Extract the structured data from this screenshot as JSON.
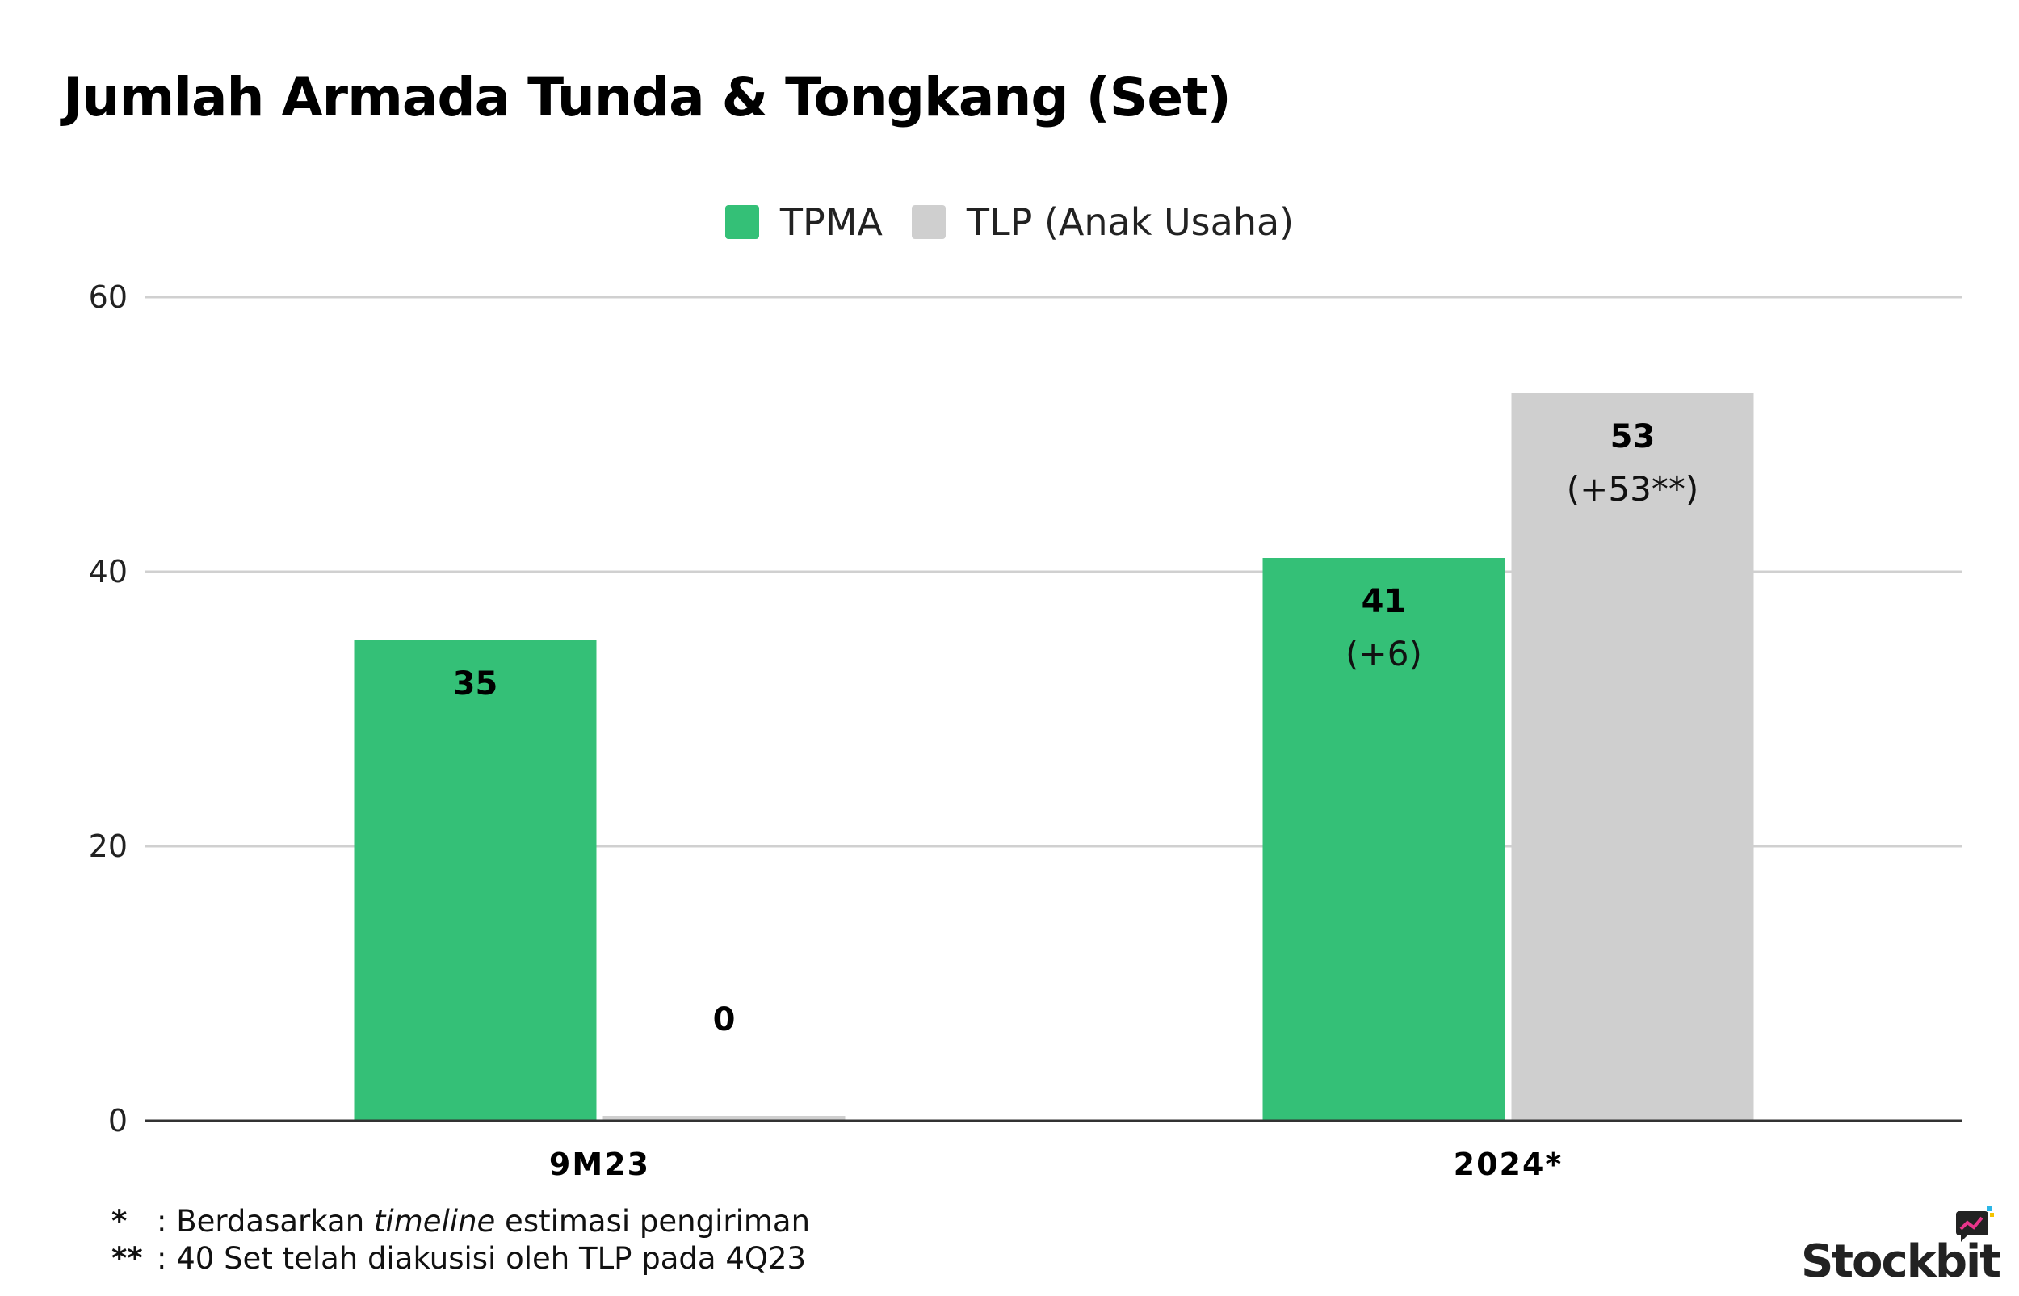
{
  "chart_data": {
    "type": "bar",
    "title": "Jumlah Armada Tunda & Tongkang (Set)",
    "categories": [
      "9M23",
      "2024*"
    ],
    "series": [
      {
        "name": "TPMA",
        "color": "#34c077",
        "values": [
          35,
          41
        ],
        "labels": [
          "35",
          "41"
        ],
        "sublabels": [
          "",
          "(+6)"
        ]
      },
      {
        "name": "TLP (Anak Usaha)",
        "color": "#cfcfcf",
        "values": [
          0,
          53
        ],
        "labels": [
          "0",
          "53"
        ],
        "sublabels": [
          "",
          "(+53**)"
        ]
      }
    ],
    "ylim": [
      0,
      60
    ],
    "yticks": [
      0,
      20,
      40,
      60
    ],
    "ytick_labels": [
      "0",
      "20",
      "40",
      "60"
    ],
    "grid": true,
    "legend_position": "top-center",
    "xlabel": "",
    "ylabel": ""
  },
  "footnotes": [
    {
      "mark": "*",
      "prefix": ": Berdasarkan ",
      "italic": "timeline",
      "suffix": " estimasi pengiriman"
    },
    {
      "mark": "**",
      "prefix": ": 40 Set telah diakusisi oleh TLP pada 4Q23",
      "italic": "",
      "suffix": ""
    }
  ],
  "brand": {
    "name": "Stockbit",
    "icon": "chat-bubble-chart-icon"
  }
}
